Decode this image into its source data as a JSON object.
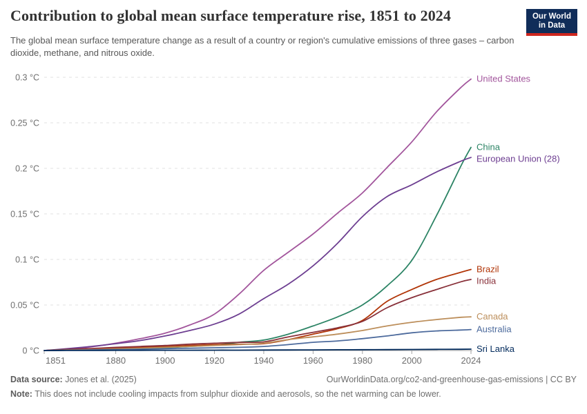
{
  "header": {
    "title": "Contribution to global mean surface temperature rise, 1851 to 2024",
    "subtitle": "The global mean surface temperature change as a result of a country or region's cumulative emissions of three gases – carbon dioxide, methane, and nitrous oxide.",
    "logo": {
      "line1": "Our World",
      "line2": "in Data",
      "bg": "#102D59",
      "accent": "#CE261E"
    }
  },
  "footer": {
    "data_source_label": "Data source:",
    "data_source": "Jones et al. (2025)",
    "url": "OurWorldinData.org/co2-and-greenhouse-gas-emissions | CC BY",
    "note_label": "Note:",
    "note": "This does not include cooling impacts from sulphur dioxide and aerosols, so the net warming can be lower."
  },
  "chart_data": {
    "type": "line",
    "title": "Contribution to global mean surface temperature rise, 1851 to 2024",
    "xlabel": "",
    "ylabel": "",
    "xlim": [
      1851,
      2024
    ],
    "ylim": [
      0,
      0.3
    ],
    "grid": "horizontal-dashed",
    "legend_position": "right-of-line-ends",
    "xticks": [
      1851,
      1880,
      1900,
      1920,
      1940,
      1960,
      1980,
      2000,
      2024
    ],
    "yticks": [
      0,
      0.05,
      0.1,
      0.15,
      0.2,
      0.25,
      0.3
    ],
    "ytick_labels": [
      "0 °C",
      "0.05 °C",
      "0.1 °C",
      "0.15 °C",
      "0.2 °C",
      "0.25 °C",
      "0.3 °C"
    ],
    "x": [
      1851,
      1860,
      1870,
      1880,
      1890,
      1900,
      1910,
      1920,
      1930,
      1940,
      1950,
      1960,
      1970,
      1980,
      1990,
      2000,
      2010,
      2020,
      2024
    ],
    "series": [
      {
        "label": "United States",
        "color": "#A2559C",
        "values": [
          0,
          0.0015,
          0.004,
          0.008,
          0.013,
          0.019,
          0.028,
          0.04,
          0.062,
          0.088,
          0.108,
          0.128,
          0.151,
          0.173,
          0.201,
          0.229,
          0.262,
          0.289,
          0.298
        ]
      },
      {
        "label": "China",
        "color": "#2C8465",
        "values": [
          0,
          0.0005,
          0.001,
          0.0015,
          0.002,
          0.003,
          0.0045,
          0.006,
          0.009,
          0.0115,
          0.018,
          0.027,
          0.037,
          0.05,
          0.071,
          0.099,
          0.148,
          0.203,
          0.223
        ]
      },
      {
        "label": "European Union (28)",
        "color": "#6D3E91",
        "values": [
          0,
          0.002,
          0.0045,
          0.0075,
          0.011,
          0.016,
          0.022,
          0.029,
          0.04,
          0.057,
          0.073,
          0.093,
          0.118,
          0.147,
          0.169,
          0.182,
          0.196,
          0.208,
          0.212
        ]
      },
      {
        "label": "Brazil",
        "color": "#B13507",
        "values": [
          0,
          0.001,
          0.0018,
          0.0026,
          0.0035,
          0.0045,
          0.0055,
          0.0065,
          0.007,
          0.0075,
          0.012,
          0.018,
          0.024,
          0.033,
          0.054,
          0.067,
          0.078,
          0.086,
          0.089
        ]
      },
      {
        "label": "India",
        "color": "#883039",
        "values": [
          0,
          0.0012,
          0.0022,
          0.0035,
          0.0045,
          0.0055,
          0.007,
          0.008,
          0.009,
          0.0095,
          0.015,
          0.02,
          0.025,
          0.032,
          0.047,
          0.058,
          0.067,
          0.0755,
          0.078
        ]
      },
      {
        "label": "Canada",
        "color": "#BC8E5A",
        "values": [
          0,
          0.0005,
          0.001,
          0.0018,
          0.0026,
          0.0035,
          0.0045,
          0.0055,
          0.0065,
          0.008,
          0.012,
          0.015,
          0.018,
          0.022,
          0.027,
          0.031,
          0.034,
          0.0365,
          0.037
        ]
      },
      {
        "label": "Australia",
        "color": "#4C6A9C",
        "values": [
          0,
          0.0003,
          0.0006,
          0.001,
          0.0014,
          0.002,
          0.0025,
          0.003,
          0.0035,
          0.0045,
          0.0065,
          0.009,
          0.0105,
          0.013,
          0.016,
          0.0195,
          0.0215,
          0.0225,
          0.023
        ]
      },
      {
        "label": "Sri Lanka",
        "color": "#00295B",
        "values": [
          0,
          0.0001,
          0.0001,
          0.0002,
          0.0002,
          0.0003,
          0.0003,
          0.0004,
          0.0004,
          0.0005,
          0.0006,
          0.0007,
          0.0008,
          0.0009,
          0.001,
          0.0011,
          0.0013,
          0.0014,
          0.0015
        ]
      }
    ]
  }
}
